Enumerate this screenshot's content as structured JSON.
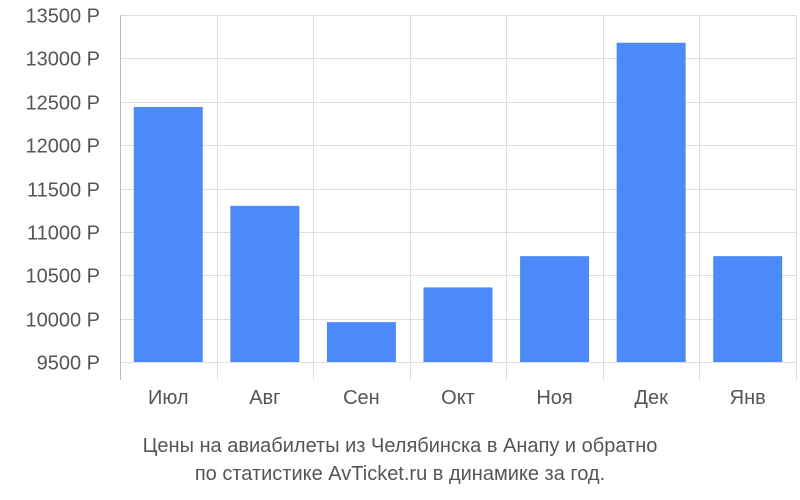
{
  "chart_data": {
    "type": "bar",
    "categories": [
      "Июл",
      "Авг",
      "Сен",
      "Окт",
      "Ноя",
      "Дек",
      "Янв"
    ],
    "values": [
      12440,
      11300,
      9960,
      10360,
      10720,
      13180,
      10720
    ],
    "ylim": [
      9500,
      13500
    ],
    "yticks": [
      9500,
      10000,
      10500,
      11000,
      11500,
      12000,
      12500,
      13000,
      13500
    ],
    "ytick_labels": [
      "9500 Р",
      "10000 Р",
      "10500 Р",
      "11000 Р",
      "11500 Р",
      "12000 Р",
      "12500 Р",
      "13000 Р",
      "13500 Р"
    ],
    "grid": true,
    "bar_color": "#4d8af9"
  },
  "caption": {
    "line1": "Цены на авиабилеты из Челябинска в Анапу и обратно",
    "line2": "по статистике AvTicket.ru в динамике за год."
  }
}
